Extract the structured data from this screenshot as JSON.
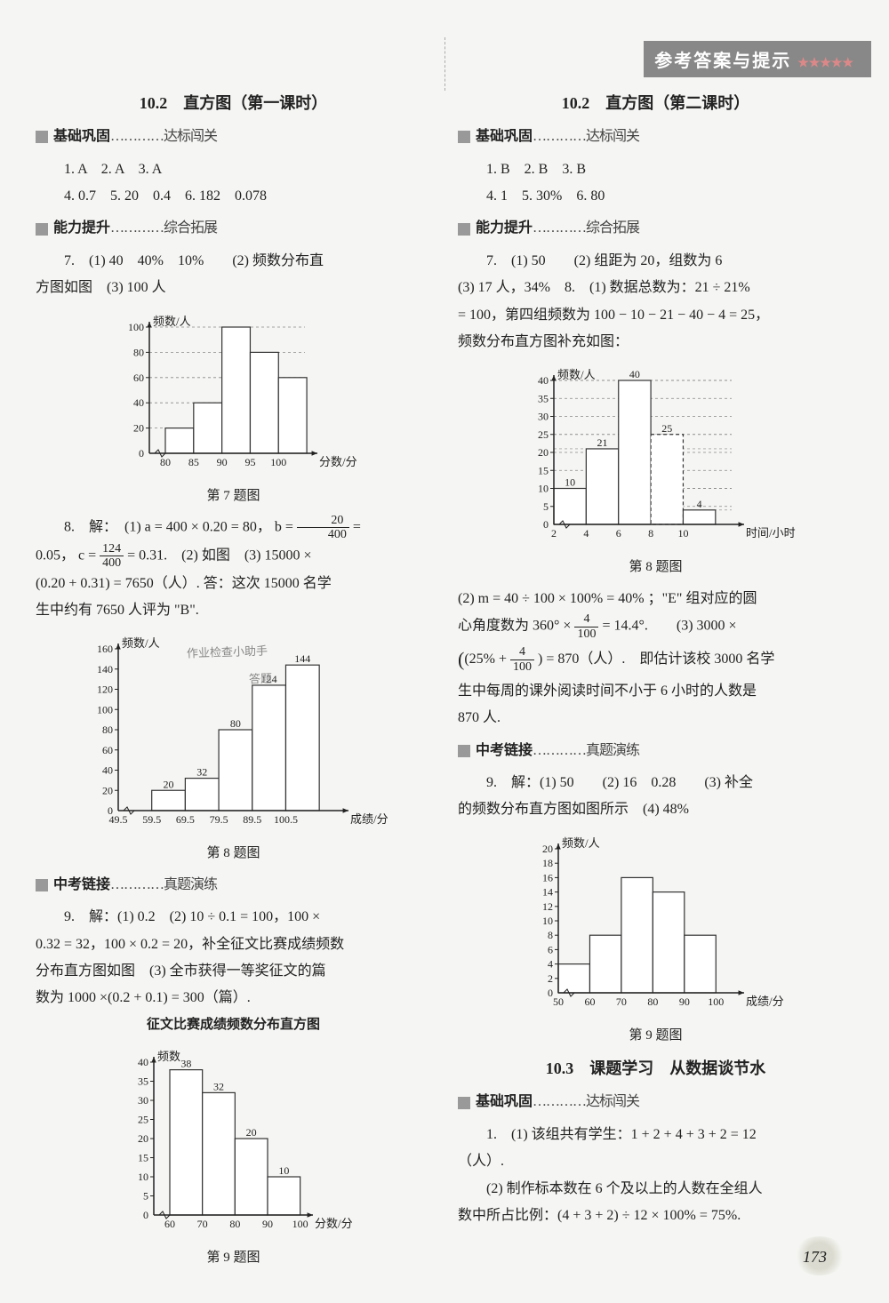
{
  "header": {
    "title": "参考答案与提示",
    "stars": "★★★★★"
  },
  "page_number": "173",
  "left": {
    "lesson_title": "10.2　直方图（第一课时）",
    "sec_basic": {
      "bold": "基础巩固",
      "tail": "…………达标闯关"
    },
    "basic_line1": "1. A　2. A　3. A",
    "basic_line2": "4. 0.7　5. 20　0.4　6. 182　0.078",
    "sec_ability": {
      "bold": "能力提升",
      "tail": "…………综合拓展"
    },
    "q7_line1": "7.　(1) 40　40%　10%　　(2) 频数分布直",
    "q7_line2": "方图如图　(3) 100 人",
    "chart7": {
      "type": "bar",
      "ylabel": "频数/人",
      "xlabel": "分数/分",
      "caption": "第 7 题图",
      "yticks": [
        0,
        20,
        40,
        60,
        80,
        100
      ],
      "xticks": [
        "80",
        "85",
        "90",
        "95",
        "100"
      ],
      "values": [
        20,
        40,
        100,
        80,
        60
      ],
      "bar_color": "#ffffff",
      "bar_stroke": "#333333",
      "axis_color": "#222222",
      "grid_dash": "3,3"
    },
    "q8_pre": "8.　解：　(1)  a = 400 × 0.20 = 80，  b = ",
    "q8_frac1": {
      "num": "20",
      "den": "400"
    },
    "q8_line2a": "0.05， c = ",
    "q8_frac2": {
      "num": "124",
      "den": "400"
    },
    "q8_line2b": " = 0.31.　(2) 如图　(3) 15000 ×",
    "q8_line3": "(0.20 + 0.31) = 7650（人）. 答：这次 15000 名学",
    "q8_line4": "生中约有 7650 人评为 \"B\".",
    "watermark1": "作业检查小助手",
    "watermark2": "答题",
    "chart8": {
      "type": "bar",
      "ylabel": "频数/人",
      "xlabel": "成绩/分",
      "caption": "第 8 题图",
      "yticks": [
        0,
        20,
        40,
        60,
        80,
        100,
        120,
        140,
        160
      ],
      "xticks": [
        "49.5",
        "59.5",
        "69.5",
        "79.5",
        "89.5",
        "100.5"
      ],
      "values": [
        0,
        20,
        32,
        80,
        124,
        144
      ],
      "bar_labels": [
        "",
        "20",
        "32",
        "80",
        "124",
        "144"
      ],
      "bar_color": "#ffffff",
      "bar_stroke": "#333333",
      "axis_color": "#222222"
    },
    "sec_zhongkao": {
      "bold": "中考链接",
      "tail": "…………真题演练"
    },
    "q9_line1": "9.　解：(1) 0.2　(2) 10 ÷ 0.1 = 100，100 ×",
    "q9_line2": "0.32 = 32，100 × 0.2 = 20，补全征文比赛成绩频数",
    "q9_line3": "分布直方图如图　(3) 全市获得一等奖征文的篇",
    "q9_line4": "数为 1000 ×(0.2 + 0.1) = 300（篇）.",
    "chart9_title": "征文比赛成绩频数分布直方图",
    "chart9": {
      "type": "bar",
      "ylabel": "频数",
      "xlabel": "分数/分",
      "caption": "第 9 题图",
      "yticks": [
        0,
        5,
        10,
        15,
        20,
        25,
        30,
        35,
        40
      ],
      "xticks": [
        "60",
        "70",
        "80",
        "90",
        "100"
      ],
      "values": [
        38,
        32,
        20,
        10
      ],
      "bar_labels": [
        "38",
        "32",
        "20",
        "10"
      ],
      "bar_color": "#ffffff",
      "bar_stroke": "#333333",
      "axis_color": "#222222"
    }
  },
  "right": {
    "lesson_title": "10.2　直方图（第二课时）",
    "sec_basic": {
      "bold": "基础巩固",
      "tail": "…………达标闯关"
    },
    "basic_line1": "1. B　2. B　3. B",
    "basic_line2": "4. 1　5. 30%　6. 80",
    "sec_ability": {
      "bold": "能力提升",
      "tail": "…………综合拓展"
    },
    "q7_line1": "7.　(1) 50　　(2) 组距为 20，组数为 6",
    "q7_line2": "(3) 17 人，34%　8.　(1) 数据总数为：21 ÷ 21%",
    "q7_line3": "= 100，第四组频数为 100 − 10 − 21 − 40 − 4 = 25，",
    "q7_line4": "频数分布直方图补充如图：",
    "chart8": {
      "type": "bar",
      "ylabel": "频数/人",
      "xlabel": "时间/小时",
      "caption": "第 8 题图",
      "yticks": [
        0,
        5,
        10,
        15,
        20,
        25,
        30,
        35,
        40
      ],
      "xticks": [
        "2",
        "4",
        "6",
        "8",
        "10"
      ],
      "values": [
        10,
        21,
        40,
        25,
        4
      ],
      "bar_labels": [
        "10",
        "21",
        "40",
        "25",
        "4"
      ],
      "dashed_bar_index": 3,
      "bar_color": "#ffffff",
      "bar_stroke": "#333333",
      "axis_color": "#222222",
      "grid_dash": "3,3"
    },
    "q8_line1a": "(2)  m = 40 ÷ 100 × 100% = 40% ；\"E\" 组对应的圆",
    "q8_line2a": "心角度数为 360° × ",
    "q8_frac1": {
      "num": "4",
      "den": "100"
    },
    "q8_line2b": " = 14.4°.　　(3) 3000 ×",
    "q8_line3a": "(25% + ",
    "q8_frac2": {
      "num": "4",
      "den": "100"
    },
    "q8_line3b": ") = 870（人）.　即估计该校 3000 名学",
    "q8_line4": "生中每周的课外阅读时间不小于 6 小时的人数是",
    "q8_line5": "870 人.",
    "sec_zhongkao": {
      "bold": "中考链接",
      "tail": "…………真题演练"
    },
    "q9_line1": "9.　解：(1) 50　　(2) 16　0.28　　(3) 补全",
    "q9_line2": "的频数分布直方图如图所示　(4) 48%",
    "chart9": {
      "type": "bar",
      "ylabel": "频数/人",
      "xlabel": "成绩/分",
      "caption": "第 9 题图",
      "yticks": [
        0,
        2,
        4,
        6,
        8,
        10,
        12,
        14,
        16,
        18,
        20
      ],
      "xticks": [
        "50",
        "60",
        "70",
        "80",
        "90",
        "100"
      ],
      "values": [
        4,
        8,
        16,
        14,
        8
      ],
      "bar_color": "#ffffff",
      "bar_stroke": "#333333",
      "axis_color": "#222222"
    },
    "lesson_title_103": "10.3　课题学习　从数据谈节水",
    "sec_basic_103": {
      "bold": "基础巩固",
      "tail": "…………达标闯关"
    },
    "q1_line1": "1.　(1) 该组共有学生：1 + 2 + 4 + 3 + 2 = 12",
    "q1_line2": "（人）.",
    "q1_line3": "(2) 制作标本数在 6 个及以上的人数在全组人",
    "q1_line4": "数中所占比例：(4 + 3 + 2) ÷ 12 × 100% = 75%."
  }
}
